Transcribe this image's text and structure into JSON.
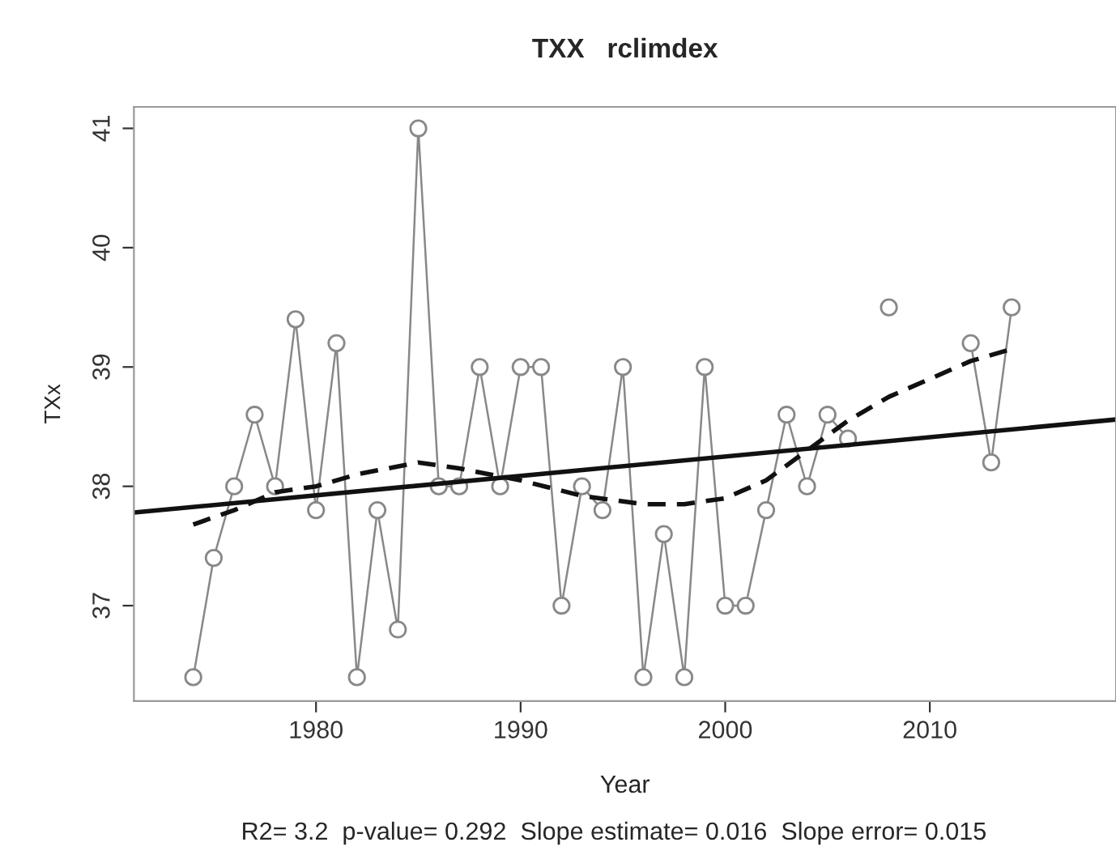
{
  "chart_data": {
    "type": "line",
    "title": "TXX   rclimdex",
    "xlabel": "Year",
    "ylabel": "TXx",
    "annotations": [
      "R2= 3.2  p-value= 0.292  Slope estimate= 0.016  Slope error= 0.015"
    ],
    "x": [
      1974,
      1975,
      1976,
      1977,
      1978,
      1979,
      1980,
      1981,
      1982,
      1983,
      1984,
      1985,
      1986,
      1987,
      1988,
      1989,
      1990,
      1991,
      1992,
      1993,
      1994,
      1995,
      1996,
      1997,
      1998,
      1999,
      2000,
      2001,
      2002,
      2003,
      2004,
      2005,
      2006,
      2007,
      2008,
      2009,
      2010,
      2011,
      2012,
      2013,
      2014
    ],
    "series": [
      {
        "color": "#888888",
        "marker": "circle",
        "line_style": "solid",
        "values": [
          36.4,
          37.4,
          38.0,
          38.6,
          38.0,
          39.4,
          37.8,
          39.2,
          36.4,
          37.8,
          36.8,
          41.0,
          38.0,
          38.0,
          39.0,
          38.0,
          39.0,
          39.0,
          37.0,
          38.0,
          37.8,
          39.0,
          36.4,
          37.6,
          36.4,
          39.0,
          37.0,
          37.0,
          37.8,
          38.6,
          38.0,
          38.6,
          38.4,
          null,
          39.5,
          null,
          null,
          null,
          39.2,
          38.2,
          39.5
        ]
      },
      {
        "type": "line",
        "color": "#111111",
        "marker": "none",
        "line_style": "solid",
        "x": [
          1971.1,
          2019.1
        ],
        "values": [
          37.78,
          38.56
        ]
      },
      {
        "type": "line",
        "color": "#111111",
        "marker": "none",
        "line_style": "dashed",
        "x": [
          1974,
          1976,
          1978,
          1980,
          1982,
          1985,
          1987,
          1990,
          1993,
          1996,
          1998,
          2000,
          2002,
          2004,
          2006,
          2008,
          2010,
          2012,
          2014
        ],
        "values": [
          37.68,
          37.8,
          37.95,
          38.0,
          38.1,
          38.2,
          38.15,
          38.05,
          37.92,
          37.85,
          37.85,
          37.9,
          38.05,
          38.3,
          38.55,
          38.75,
          38.9,
          39.05,
          39.15
        ]
      }
    ],
    "xlim": [
      1971.1,
      2019.1
    ],
    "xticks": [
      1980,
      1990,
      2000,
      2010
    ],
    "ylim": [
      36.2,
      41.18
    ],
    "yticks": [
      37,
      38,
      39,
      40,
      41
    ],
    "grid": false,
    "legend": false
  }
}
